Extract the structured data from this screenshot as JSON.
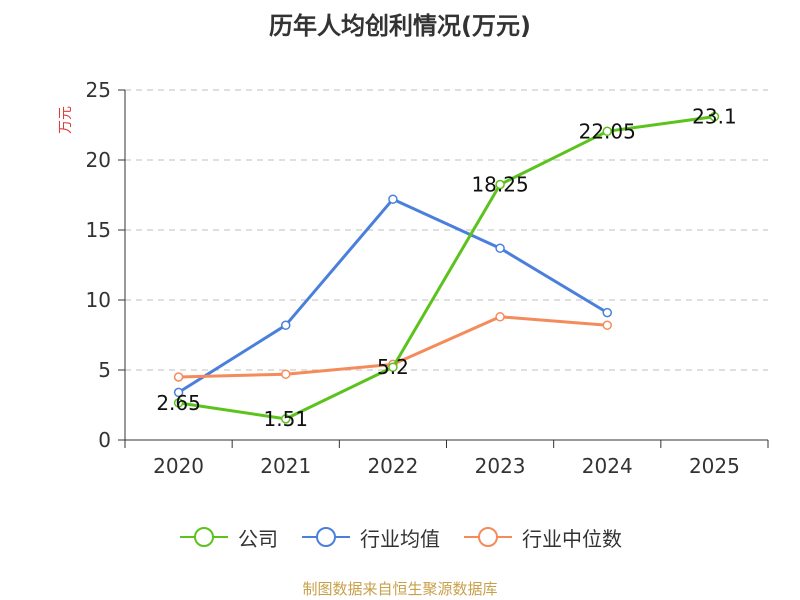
{
  "title": "历年人均创利情况(万元)",
  "source_note": "制图数据来自恒生聚源数据库",
  "chart_data": {
    "type": "line",
    "title": "历年人均创利情况(万元)",
    "ylabel": "万元",
    "xlabel": "",
    "categories": [
      "2020",
      "2021",
      "2022",
      "2023",
      "2024",
      "2025"
    ],
    "ylim": [
      0,
      25
    ],
    "yticks": [
      0,
      5,
      10,
      15,
      20,
      25
    ],
    "grid": true,
    "legend_position": "bottom",
    "colors": {
      "unit_label": "#e03c3c",
      "grid": "#cccccc",
      "axis": "#333333"
    },
    "series": [
      {
        "name": "公司",
        "color": "#5cc21c",
        "values": [
          2.65,
          1.51,
          5.2,
          18.25,
          22.05,
          23.1
        ],
        "labels": [
          "2.65",
          "1.51",
          "5.2",
          "18.25",
          "22.05",
          "23.1"
        ]
      },
      {
        "name": "行业均值",
        "color": "#4a7fdc",
        "values": [
          3.4,
          8.2,
          17.2,
          13.7,
          9.1,
          null
        ],
        "labels": []
      },
      {
        "name": "行业中位数",
        "color": "#f58b5a",
        "values": [
          4.5,
          4.7,
          5.4,
          8.8,
          8.2,
          null
        ],
        "labels": []
      }
    ]
  }
}
